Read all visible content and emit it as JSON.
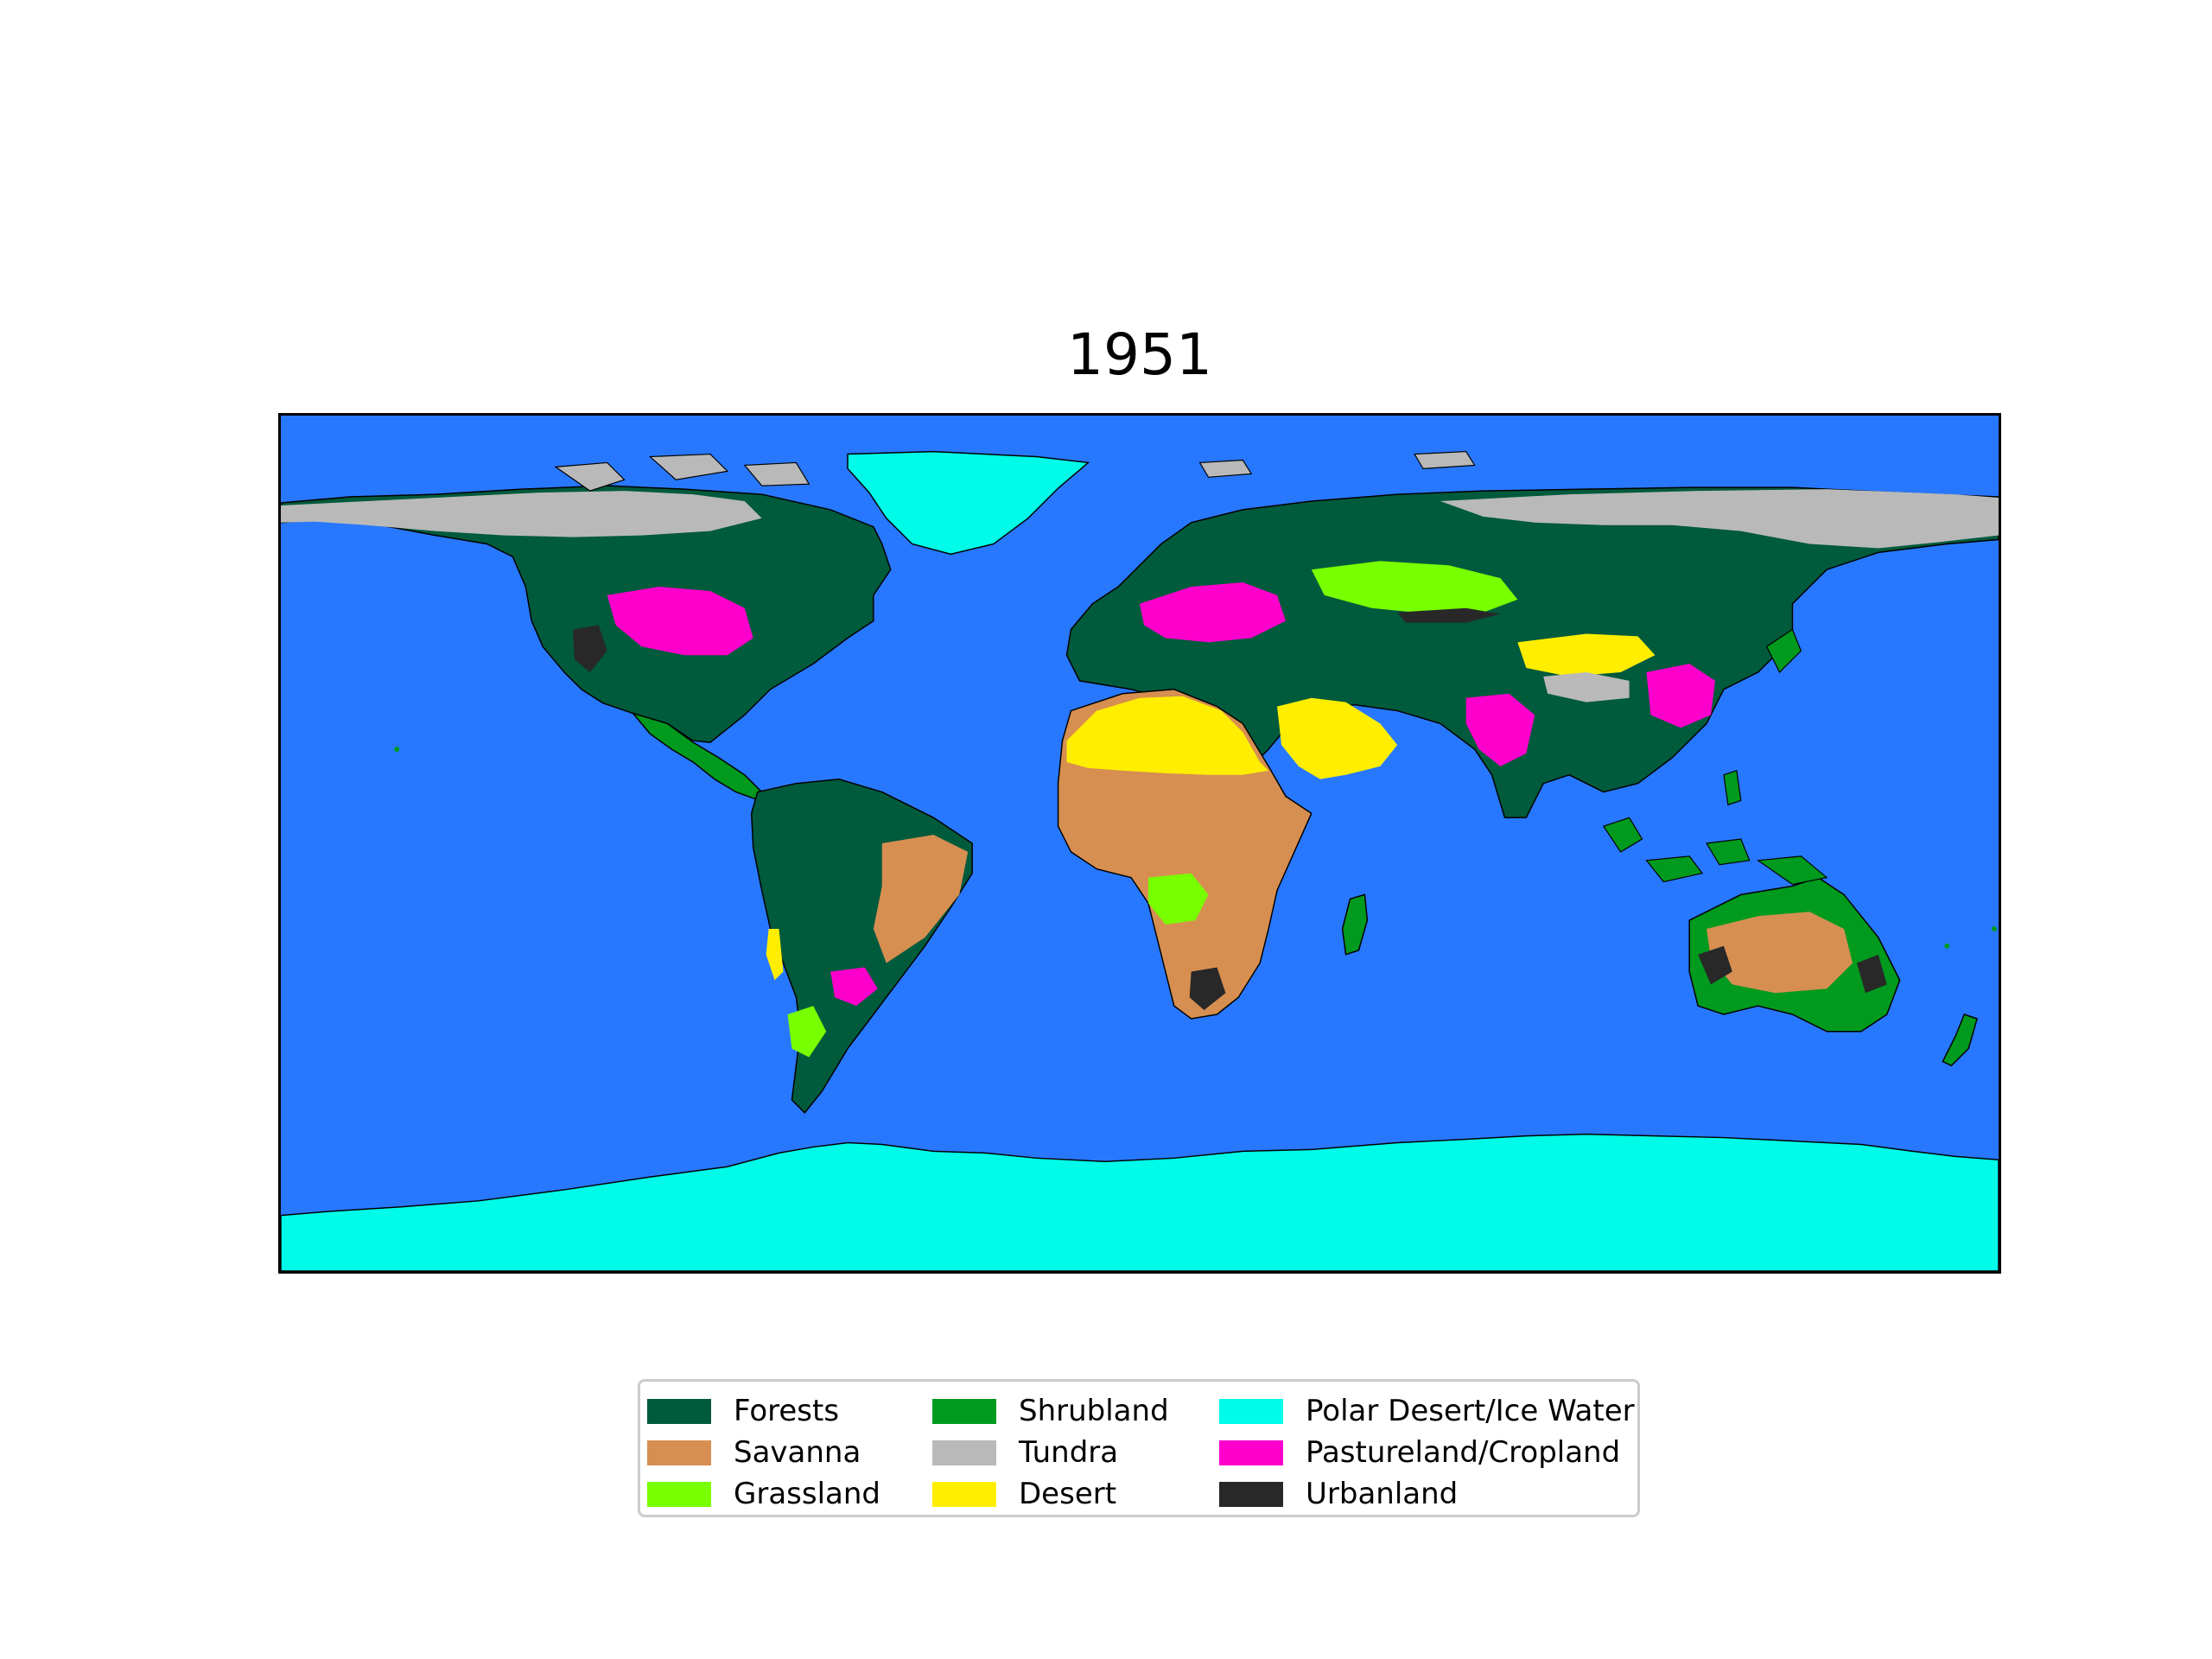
{
  "map": {
    "title": "1951",
    "colors": {
      "ocean": "#2878ff",
      "Forests": "#005a3c",
      "Savanna": "#d68f51",
      "Grassland": "#78ff00",
      "Shrubland": "#009a1e",
      "Tundra": "#b9b9b9",
      "Desert": "#ffee00",
      "Polar Desert/Ice Water": "#00fbe8",
      "Pastureland/Cropland": "#ff00cc",
      "Urbanland": "#282828"
    }
  },
  "legend": {
    "items": [
      {
        "label": "Forests",
        "color": "#005a3c"
      },
      {
        "label": "Savanna",
        "color": "#d68f51"
      },
      {
        "label": "Grassland",
        "color": "#78ff00"
      },
      {
        "label": "Shrubland",
        "color": "#009a1e"
      },
      {
        "label": "Tundra",
        "color": "#b9b9b9"
      },
      {
        "label": "Desert",
        "color": "#ffee00"
      },
      {
        "label": "Polar Desert/Ice Water",
        "color": "#00fbe8"
      },
      {
        "label": "Pastureland/Cropland",
        "color": "#ff00cc"
      },
      {
        "label": "Urbanland",
        "color": "#282828"
      }
    ]
  }
}
